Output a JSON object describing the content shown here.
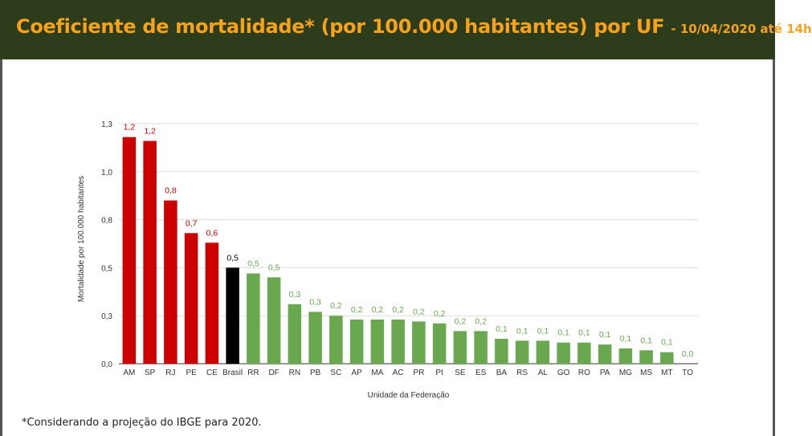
{
  "header": {
    "title": "Coeficiente de mortalidade* (por 100.000 habitantes) por UF",
    "subtitle": "- 10/04/2020 até 14h"
  },
  "footnote": "*Considerando a projeção do IBGE para 2020.",
  "colors": {
    "header_bg": "#2d3c1b",
    "title": "#f6a21b",
    "highlight": "#cc0000",
    "national": "#000000",
    "normal": "#6aa84f"
  },
  "chart_data": {
    "type": "bar",
    "title": "",
    "xlabel": "Unidade da Federação",
    "ylabel": "Mortalidade por 100.000 habitantes",
    "ylim": [
      0,
      1.3
    ],
    "yticks": [
      0,
      0.25,
      0.5,
      0.75,
      1.0,
      1.25
    ],
    "ytick_labels": [
      "0,0",
      "0,3",
      "0,5",
      "0,8",
      "1,0",
      "1,3"
    ],
    "grid": true,
    "categories": [
      "AM",
      "SP",
      "RJ",
      "PE",
      "CE",
      "Brasil",
      "RR",
      "DF",
      "RN",
      "PB",
      "SC",
      "AP",
      "MA",
      "AC",
      "PR",
      "PI",
      "SE",
      "ES",
      "BA",
      "RS",
      "AL",
      "GO",
      "RO",
      "PA",
      "MG",
      "MS",
      "MT",
      "TO"
    ],
    "values": [
      1.18,
      1.16,
      0.85,
      0.68,
      0.63,
      0.5,
      0.47,
      0.45,
      0.31,
      0.27,
      0.25,
      0.23,
      0.23,
      0.23,
      0.22,
      0.21,
      0.17,
      0.17,
      0.13,
      0.12,
      0.12,
      0.11,
      0.11,
      0.1,
      0.08,
      0.07,
      0.06,
      0.0
    ],
    "data_labels": [
      "1,2",
      "1,2",
      "0,8",
      "0,7",
      "0,6",
      "0,5",
      "0,5",
      "0,5",
      "0,3",
      "0,3",
      "0,2",
      "0,2",
      "0,2",
      "0,2",
      "0,2",
      "0,2",
      "0,2",
      "0,2",
      "0,1",
      "0,1",
      "0,1",
      "0,1",
      "0,1",
      "0,1",
      "0,1",
      "0,1",
      "0,1",
      "0,0"
    ],
    "bar_groups": [
      "highlight",
      "highlight",
      "highlight",
      "highlight",
      "highlight",
      "national",
      "normal",
      "normal",
      "normal",
      "normal",
      "normal",
      "normal",
      "normal",
      "normal",
      "normal",
      "normal",
      "normal",
      "normal",
      "normal",
      "normal",
      "normal",
      "normal",
      "normal",
      "normal",
      "normal",
      "normal",
      "normal",
      "normal"
    ]
  }
}
